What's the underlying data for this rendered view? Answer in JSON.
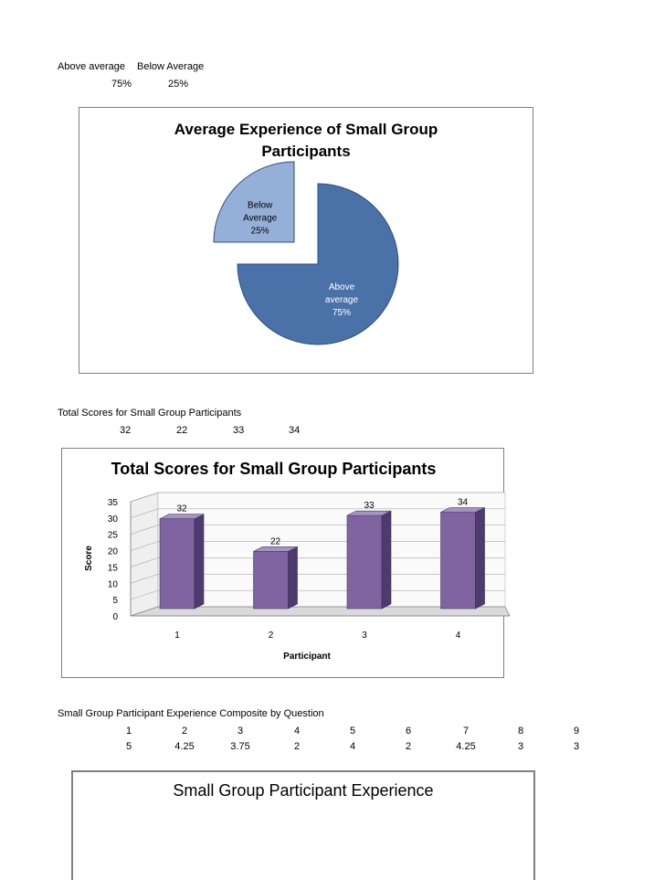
{
  "experience_table": {
    "headers": [
      "Above average",
      "Below Average"
    ],
    "values": [
      "75%",
      "25%"
    ]
  },
  "pie_chart": {
    "chart_data": {
      "type": "pie",
      "title": "Average Experience of Small Group Participants",
      "title_line1": "Average Experience of Small Group",
      "title_line2": "Participants",
      "slices": [
        {
          "label_line1": "Above",
          "label_line2": "average",
          "pct_label": "75%",
          "value": 75,
          "color": "#4a71a8"
        },
        {
          "label_line1": "Below",
          "label_line2": "Average",
          "pct_label": "25%",
          "value": 25,
          "color": "#95b0d8"
        }
      ]
    }
  },
  "scores_table": {
    "heading": "Total Scores for Small Group Participants",
    "values": [
      "32",
      "22",
      "33",
      "34"
    ]
  },
  "bar_chart": {
    "chart_data": {
      "type": "bar",
      "title": "Total Scores for Small Group Participants",
      "categories": [
        "1",
        "2",
        "3",
        "4"
      ],
      "values": [
        32,
        22,
        33,
        34
      ],
      "value_labels": [
        "32",
        "22",
        "33",
        "34"
      ],
      "xlabel": "Participant",
      "ylabel": "Score",
      "ylim": [
        0,
        35
      ],
      "yticks": [
        "0",
        "5",
        "10",
        "15",
        "20",
        "25",
        "30",
        "35"
      ],
      "color": "#8064a2"
    }
  },
  "composite_table": {
    "heading": "Small Group Participant Experience Composite by Question",
    "questions": [
      "1",
      "2",
      "3",
      "4",
      "5",
      "6",
      "7",
      "8",
      "9"
    ],
    "values": [
      "5",
      "4.25",
      "3.75",
      "2",
      "4",
      "2",
      "4.25",
      "3",
      "3"
    ]
  },
  "third_chart": {
    "title": "Small Group Participant Experience"
  }
}
